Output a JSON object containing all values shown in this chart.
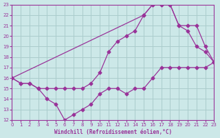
{
  "xlabel": "Windchill (Refroidissement éolien,°C)",
  "bg_color": "#cce8e8",
  "grid_color": "#aacccc",
  "line_color": "#993399",
  "xlim": [
    0,
    23
  ],
  "ylim": [
    12,
    23
  ],
  "xticks": [
    0,
    1,
    2,
    3,
    4,
    5,
    6,
    7,
    8,
    9,
    10,
    11,
    12,
    13,
    14,
    15,
    16,
    17,
    18,
    19,
    20,
    21,
    22,
    23
  ],
  "yticks": [
    12,
    13,
    14,
    15,
    16,
    17,
    18,
    19,
    20,
    21,
    22,
    23
  ],
  "series": [
    {
      "x": [
        0,
        1,
        2,
        3,
        4,
        5,
        6,
        7,
        8,
        9,
        10,
        11,
        12,
        13,
        14,
        15,
        16,
        17,
        18,
        19,
        20,
        21,
        22,
        23
      ],
      "y": [
        16,
        15.5,
        15.5,
        15,
        14,
        13.5,
        12,
        12.5,
        13,
        13.5,
        14.5,
        15,
        15,
        14.5,
        15,
        15,
        16,
        17,
        17,
        17,
        17,
        17,
        17,
        17.5
      ]
    },
    {
      "x": [
        0,
        1,
        2,
        3,
        4,
        5,
        6,
        7,
        8,
        9,
        10,
        11,
        12,
        13,
        14,
        15,
        16,
        17,
        18,
        19,
        20,
        21,
        22,
        23
      ],
      "y": [
        16,
        15.5,
        15.5,
        15,
        15,
        15,
        15,
        15,
        15,
        15.5,
        16.5,
        18.5,
        19.5,
        20,
        20.5,
        22,
        23,
        23,
        23,
        21,
        20.5,
        19,
        18.5,
        17.5
      ]
    },
    {
      "x": [
        0,
        15,
        16,
        17,
        18,
        19,
        20,
        21,
        22,
        23
      ],
      "y": [
        16,
        22,
        23,
        23,
        23,
        21,
        21,
        21,
        19,
        17.5
      ]
    }
  ]
}
